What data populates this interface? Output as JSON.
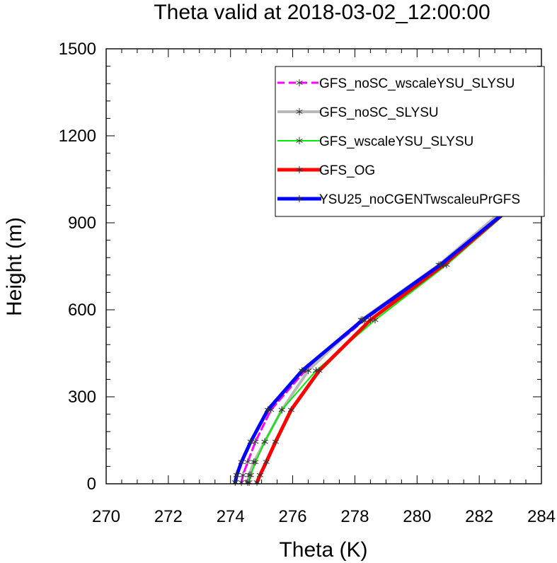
{
  "chart_data": {
    "type": "line",
    "title": "Theta valid at 2018-03-02_12:00:00",
    "xlabel": "Theta (K)",
    "ylabel": "Height (m)",
    "xlim": [
      270,
      284
    ],
    "ylim": [
      0,
      1500
    ],
    "xticks": [
      "270",
      "272",
      "274",
      "276",
      "278",
      "280",
      "282",
      "284"
    ],
    "yticks": [
      "0",
      "300",
      "600",
      "900",
      "1200",
      "1500"
    ],
    "legend_position": "top-right",
    "grid": false,
    "series": [
      {
        "name": "GFS_noSC_wscaleYSU_SLYSU",
        "color": "#ff00ff",
        "dash": "dashed",
        "width": 3,
        "points": [
          [
            274.35,
            5
          ],
          [
            274.4,
            30
          ],
          [
            274.55,
            75
          ],
          [
            274.8,
            145
          ],
          [
            275.3,
            255
          ],
          [
            276.4,
            390
          ],
          [
            278.3,
            565
          ],
          [
            280.8,
            755
          ],
          [
            283.1,
            965
          ],
          [
            284.0,
            1075
          ]
        ]
      },
      {
        "name": "GFS_noSC_SLYSU",
        "color": "#b8b8b8",
        "dash": "solid",
        "width": 4,
        "points": [
          [
            274.55,
            5
          ],
          [
            274.6,
            30
          ],
          [
            274.75,
            75
          ],
          [
            275.1,
            145
          ],
          [
            275.65,
            255
          ],
          [
            276.5,
            390
          ],
          [
            278.2,
            565
          ],
          [
            280.7,
            755
          ],
          [
            283.0,
            965
          ],
          [
            284.0,
            1080
          ]
        ]
      },
      {
        "name": "GFS_wscaleYSU_SLYSU",
        "color": "#00ee00",
        "dash": "solid",
        "width": 2,
        "points": [
          [
            274.6,
            5
          ],
          [
            274.65,
            30
          ],
          [
            274.8,
            75
          ],
          [
            275.1,
            145
          ],
          [
            275.65,
            255
          ],
          [
            276.75,
            390
          ],
          [
            278.65,
            565
          ],
          [
            280.95,
            755
          ],
          [
            283.2,
            965
          ],
          [
            284.0,
            1065
          ]
        ]
      },
      {
        "name": "GFS_OG",
        "color": "#ff0000",
        "dash": "solid",
        "width": 5,
        "points": [
          [
            274.85,
            5
          ],
          [
            274.95,
            30
          ],
          [
            275.15,
            75
          ],
          [
            275.45,
            145
          ],
          [
            275.95,
            255
          ],
          [
            276.85,
            390
          ],
          [
            278.5,
            565
          ],
          [
            280.85,
            755
          ],
          [
            283.15,
            965
          ],
          [
            284.0,
            1070
          ]
        ]
      },
      {
        "name": "YSU25_noCGENTwscaleuPrGFS",
        "color": "#0000ff",
        "dash": "solid",
        "width": 5,
        "points": [
          [
            274.15,
            5
          ],
          [
            274.2,
            30
          ],
          [
            274.35,
            75
          ],
          [
            274.65,
            145
          ],
          [
            275.2,
            255
          ],
          [
            276.3,
            390
          ],
          [
            278.25,
            565
          ],
          [
            280.75,
            755
          ],
          [
            283.15,
            965
          ],
          [
            284.0,
            1070
          ]
        ]
      }
    ]
  }
}
